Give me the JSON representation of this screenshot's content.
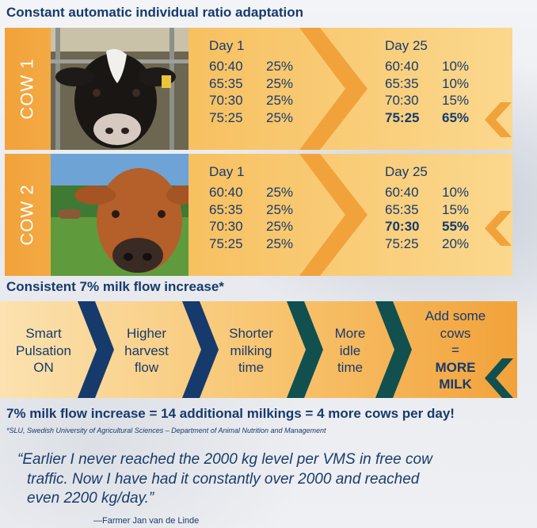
{
  "heading_top": "Constant automatic individual ratio adaptation",
  "cows": [
    {
      "label": "COW 1",
      "day1": {
        "title": "Day 1",
        "rows": [
          {
            "ratio": "60:40",
            "pct": "25%"
          },
          {
            "ratio": "65:35",
            "pct": "25%"
          },
          {
            "ratio": "70:30",
            "pct": "25%"
          },
          {
            "ratio": "75:25",
            "pct": "25%"
          }
        ]
      },
      "day25": {
        "title": "Day 25",
        "rows": [
          {
            "ratio": "60:40",
            "pct": "10%"
          },
          {
            "ratio": "65:35",
            "pct": "10%"
          },
          {
            "ratio": "70:30",
            "pct": "15%"
          },
          {
            "ratio": "75:25",
            "pct": "65%"
          }
        ]
      }
    },
    {
      "label": "COW 2",
      "day1": {
        "title": "Day 1",
        "rows": [
          {
            "ratio": "60:40",
            "pct": "25%"
          },
          {
            "ratio": "65:35",
            "pct": "25%"
          },
          {
            "ratio": "70:30",
            "pct": "25%"
          },
          {
            "ratio": "75:25",
            "pct": "25%"
          }
        ]
      },
      "day25": {
        "title": "Day 25",
        "rows": [
          {
            "ratio": "60:40",
            "pct": "10%"
          },
          {
            "ratio": "65:35",
            "pct": "15%"
          },
          {
            "ratio": "70:30",
            "pct": "55%"
          },
          {
            "ratio": "75:25",
            "pct": "20%"
          }
        ]
      }
    }
  ],
  "heading_mid": "Consistent 7% milk flow increase*",
  "flow_steps": [
    {
      "l1": "Smart",
      "l2": "Pulsation",
      "l3": "ON"
    },
    {
      "l1": "Higher",
      "l2": "harvest",
      "l3": "flow"
    },
    {
      "l1": "Shorter",
      "l2": "milking",
      "l3": "time"
    },
    {
      "l1": "More",
      "l2": "idle",
      "l3": "time"
    },
    {
      "l1": "Add some",
      "l2": "cows",
      "l3": "=",
      "l4": "MORE",
      "l5": "MILK"
    }
  ],
  "summary": "7% milk flow increase = 14 additional milkings = 4 more cows per day!",
  "footnote": "*SLU, Swedish University of Agricultural Sciences – Department of Animal Nutrition and Management",
  "quote": {
    "l1": "“Earlier I never reached the 2000 kg level per VMS in free cow",
    "l2": "traffic. Now I have had it constantly over 2000 and reached",
    "l3": "even 2200 kg/day.”"
  },
  "attribution": "—Farmer Jan van de Linde",
  "colors": {
    "orange": "#f2a23a",
    "navy": "#173a6d",
    "teal": "#11504f",
    "light_orange": "#fbd88e"
  }
}
